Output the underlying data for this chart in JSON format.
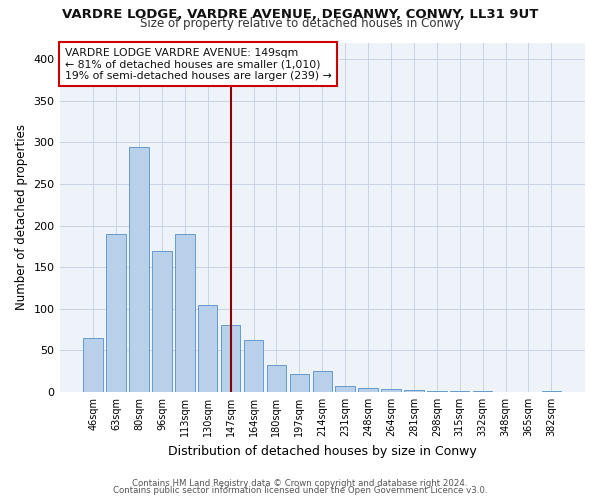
{
  "title": "VARDRE LODGE, VARDRE AVENUE, DEGANWY, CONWY, LL31 9UT",
  "subtitle": "Size of property relative to detached houses in Conwy",
  "xlabel": "Distribution of detached houses by size in Conwy",
  "ylabel": "Number of detached properties",
  "bar_labels": [
    "46sqm",
    "63sqm",
    "80sqm",
    "96sqm",
    "113sqm",
    "130sqm",
    "147sqm",
    "164sqm",
    "180sqm",
    "197sqm",
    "214sqm",
    "231sqm",
    "248sqm",
    "264sqm",
    "281sqm",
    "298sqm",
    "315sqm",
    "332sqm",
    "348sqm",
    "365sqm",
    "382sqm"
  ],
  "bar_values": [
    65,
    190,
    295,
    170,
    190,
    105,
    80,
    62,
    33,
    22,
    25,
    7,
    5,
    4,
    2,
    1,
    1,
    1,
    0,
    0,
    1
  ],
  "bar_color": "#b8d0ea",
  "bar_edge_color": "#6699cc",
  "highlight_index": 6,
  "highlight_line_color": "#8b0000",
  "annotation_text": "VARDRE LODGE VARDRE AVENUE: 149sqm\n← 81% of detached houses are smaller (1,010)\n19% of semi-detached houses are larger (239) →",
  "annotation_box_color": "#ffffff",
  "annotation_box_edge": "#cc0000",
  "ylim": [
    0,
    420
  ],
  "yticks": [
    0,
    50,
    100,
    150,
    200,
    250,
    300,
    350,
    400
  ],
  "footer1": "Contains HM Land Registry data © Crown copyright and database right 2024.",
  "footer2": "Contains public sector information licensed under the Open Government Licence v3.0.",
  "bg_color": "#ffffff",
  "plot_bg_color": "#eef3fa",
  "grid_color": "#c8d4e3"
}
